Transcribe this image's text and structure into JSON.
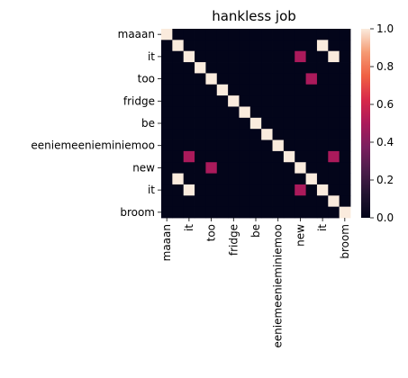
{
  "chart_data": {
    "type": "heatmap",
    "title": "hankless job",
    "xlabel": "",
    "ylabel": "",
    "rows": 17,
    "cols": 17,
    "x_tick_labels": [
      "maaan",
      "it",
      "too",
      "fridge",
      "be",
      "eeniemeenieminiemoo",
      "new",
      "it",
      "broom"
    ],
    "x_tick_indices": [
      0,
      2,
      4,
      6,
      8,
      10,
      12,
      14,
      16
    ],
    "y_tick_labels": [
      "maaan",
      "it",
      "too",
      "fridge",
      "be",
      "eeniemeenieminiemoo",
      "new",
      "it",
      "broom"
    ],
    "y_tick_indices": [
      0,
      2,
      4,
      6,
      8,
      10,
      12,
      14,
      16
    ],
    "values": [
      [
        1,
        0,
        0,
        0,
        0,
        0,
        0,
        0,
        0,
        0,
        0,
        0,
        0,
        0,
        0,
        0,
        0
      ],
      [
        0,
        1,
        0,
        0,
        0,
        0,
        0,
        0,
        0,
        0,
        0,
        0,
        0,
        0,
        1,
        0,
        0
      ],
      [
        0,
        0,
        1,
        0,
        0,
        0,
        0,
        0,
        0,
        0,
        0,
        0,
        0.5,
        0,
        0,
        1,
        0
      ],
      [
        0,
        0,
        0,
        1,
        0,
        0,
        0,
        0,
        0,
        0,
        0,
        0,
        0,
        0,
        0,
        0,
        0
      ],
      [
        0,
        0,
        0,
        0,
        1,
        0,
        0,
        0,
        0,
        0,
        0,
        0,
        0,
        0.5,
        0,
        0,
        0
      ],
      [
        0,
        0,
        0,
        0,
        0,
        1,
        0,
        0,
        0,
        0,
        0,
        0,
        0,
        0,
        0,
        0,
        0
      ],
      [
        0,
        0,
        0,
        0,
        0,
        0,
        1,
        0,
        0,
        0,
        0,
        0,
        0,
        0,
        0,
        0,
        0
      ],
      [
        0,
        0,
        0,
        0,
        0,
        0,
        0,
        1,
        0,
        0,
        0,
        0,
        0,
        0,
        0,
        0,
        0
      ],
      [
        0,
        0,
        0,
        0,
        0,
        0,
        0,
        0,
        1,
        0,
        0,
        0,
        0,
        0,
        0,
        0,
        0
      ],
      [
        0,
        0,
        0,
        0,
        0,
        0,
        0,
        0,
        0,
        1,
        0,
        0,
        0,
        0,
        0,
        0,
        0
      ],
      [
        0,
        0,
        0,
        0,
        0,
        0,
        0,
        0,
        0,
        0,
        1,
        0,
        0,
        0,
        0,
        0,
        0
      ],
      [
        0,
        0,
        0.5,
        0,
        0,
        0,
        0,
        0,
        0,
        0,
        0,
        1,
        0,
        0,
        0,
        0.5,
        0
      ],
      [
        0,
        0,
        0,
        0,
        0.5,
        0,
        0,
        0,
        0,
        0,
        0,
        0,
        1,
        0,
        0,
        0,
        0
      ],
      [
        0,
        1,
        0,
        0,
        0,
        0,
        0,
        0,
        0,
        0,
        0,
        0,
        0,
        1,
        0,
        0,
        0
      ],
      [
        0,
        0,
        1,
        0,
        0,
        0,
        0,
        0,
        0,
        0,
        0,
        0,
        0.5,
        0,
        1,
        0,
        0
      ],
      [
        0,
        0,
        0,
        0,
        0,
        0,
        0,
        0,
        0,
        0,
        0,
        0,
        0,
        0,
        0,
        1,
        0
      ],
      [
        0,
        0,
        0,
        0,
        0,
        0,
        0,
        0,
        0,
        0,
        0,
        0,
        0,
        0,
        0,
        0,
        1
      ]
    ],
    "vmin": 0,
    "vmax": 1,
    "colorbar_ticks": [
      "0.0",
      "0.2",
      "0.4",
      "0.6",
      "0.8",
      "1.0"
    ],
    "colorbar_tick_values": [
      0,
      0.2,
      0.4,
      0.6,
      0.8,
      1.0
    ],
    "colormap": "rocket",
    "colormap_stops": [
      [
        0.0,
        "#03051a"
      ],
      [
        0.125,
        "#221331"
      ],
      [
        0.25,
        "#4c1d4b"
      ],
      [
        0.375,
        "#7b1f5f"
      ],
      [
        0.5,
        "#ab1a5b"
      ],
      [
        0.625,
        "#d8294a"
      ],
      [
        0.75,
        "#f06043"
      ],
      [
        0.875,
        "#f59a73"
      ],
      [
        1.0,
        "#faebdd"
      ]
    ]
  }
}
